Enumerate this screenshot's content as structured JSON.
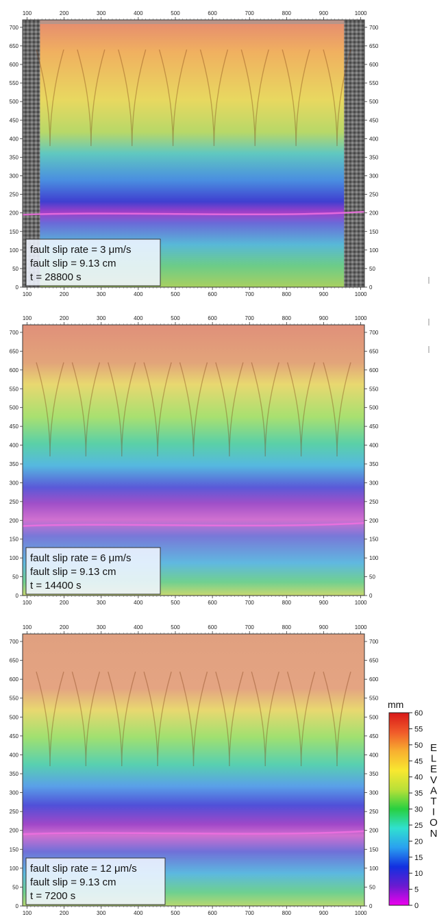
{
  "colors": {
    "colormap": [
      "#ee00ee",
      "#6a1bd0",
      "#1230e0",
      "#2aa0f0",
      "#30e0d0",
      "#28d040",
      "#b8e038",
      "#f8e830",
      "#f8b030",
      "#f05a2a",
      "#d81818"
    ],
    "info_box_fill": "#f0f5ff",
    "frame": "#333333",
    "side_strip": "#555555"
  },
  "colorbar": {
    "unit": "mm",
    "label_letters": [
      "E",
      "L",
      "E",
      "V",
      "A",
      "T",
      "I",
      "O",
      "N"
    ],
    "range": [
      0,
      60
    ],
    "ticks": [
      0,
      5,
      10,
      15,
      20,
      25,
      30,
      35,
      40,
      45,
      50,
      55,
      60
    ]
  },
  "chart_data": [
    {
      "type": "heatmap",
      "x_ticks": [
        100,
        200,
        300,
        400,
        500,
        600,
        700,
        800,
        900,
        1000
      ],
      "y_ticks": [
        0,
        50,
        100,
        150,
        200,
        250,
        300,
        350,
        400,
        450,
        500,
        550,
        600,
        650,
        700
      ],
      "xlim": [
        88,
        1010
      ],
      "ylim": [
        0,
        720
      ],
      "value_label": "ELEVATION (mm)",
      "gray_side_strips": true,
      "info_lines": [
        "fault slip rate = 3 μm/s",
        "fault slip = 9.13 cm",
        "t = 28800 s"
      ]
    },
    {
      "type": "heatmap",
      "x_ticks": [
        100,
        200,
        300,
        400,
        500,
        600,
        700,
        800,
        900,
        1000
      ],
      "y_ticks": [
        0,
        50,
        100,
        150,
        200,
        250,
        300,
        350,
        400,
        450,
        500,
        550,
        600,
        650,
        700
      ],
      "xlim": [
        88,
        1010
      ],
      "ylim": [
        0,
        720
      ],
      "value_label": "ELEVATION (mm)",
      "gray_side_strips": false,
      "info_lines": [
        "fault slip rate = 6 μm/s",
        "fault slip = 9.13 cm",
        "t = 14400 s"
      ]
    },
    {
      "type": "heatmap",
      "x_ticks": [
        100,
        200,
        300,
        400,
        500,
        600,
        700,
        800,
        900,
        1000
      ],
      "y_ticks": [
        0,
        50,
        100,
        150,
        200,
        250,
        300,
        350,
        400,
        450,
        500,
        550,
        600,
        650,
        700
      ],
      "xlim": [
        88,
        1010
      ],
      "ylim": [
        0,
        720
      ],
      "value_label": "ELEVATION (mm)",
      "gray_side_strips": false,
      "info_lines": [
        "fault slip rate = 12 μm/s",
        "fault slip = 9.13 cm",
        "t = 7200 s"
      ]
    }
  ]
}
